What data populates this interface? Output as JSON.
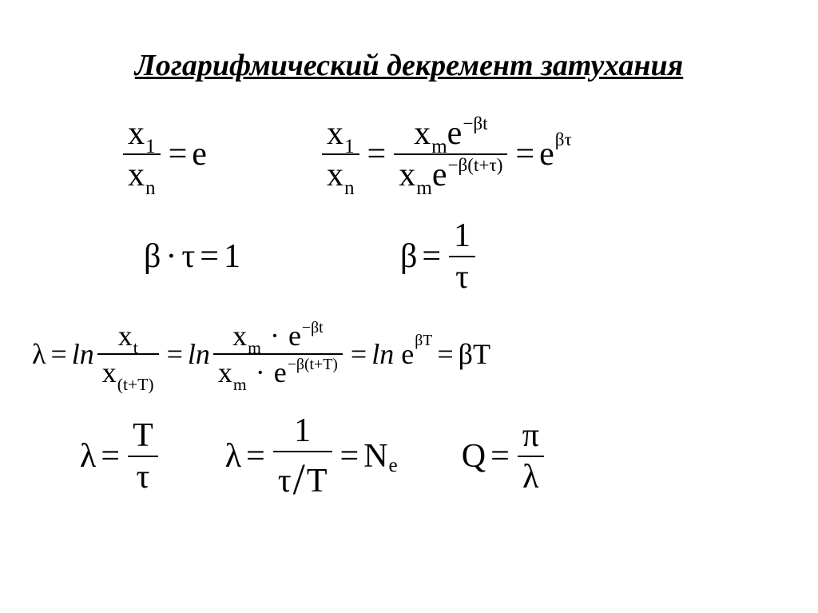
{
  "title": "Логарифмический декремент затухания",
  "colors": {
    "text": "#000000",
    "bg": "#ffffff"
  },
  "typography": {
    "title_fontsize": 38,
    "math_fontsize": 42,
    "font_family": "Times New Roman"
  },
  "sym": {
    "x": "x",
    "one": "1",
    "n": "n",
    "m": "m",
    "t": "t",
    "T": "T",
    "e": "e",
    "eq": "=",
    "beta": "β",
    "tau": "τ",
    "lambda": "λ",
    "dot": "·",
    "ln": "ln",
    "Q": "Q",
    "pi": "π",
    "N": "N",
    "minus": "−",
    "slash": "/",
    "lp": "(",
    "rp": ")",
    "plus": "+"
  },
  "equations_description": [
    "x1 / xn = e",
    "x1 / xn = xm e^{-βt} / ( xm e^{-β(t+τ)} ) = e^{βτ}",
    "β · τ = 1",
    "β = 1 / τ",
    "λ = ln ( xt / x(t+T) ) = ln ( xm·e^{-βt} / xm·e^{-β(t+T)} ) = ln e^{βT} = βT",
    "λ = T / τ",
    "λ = 1 / (τ/T) = Ne",
    "Q = π / λ"
  ]
}
